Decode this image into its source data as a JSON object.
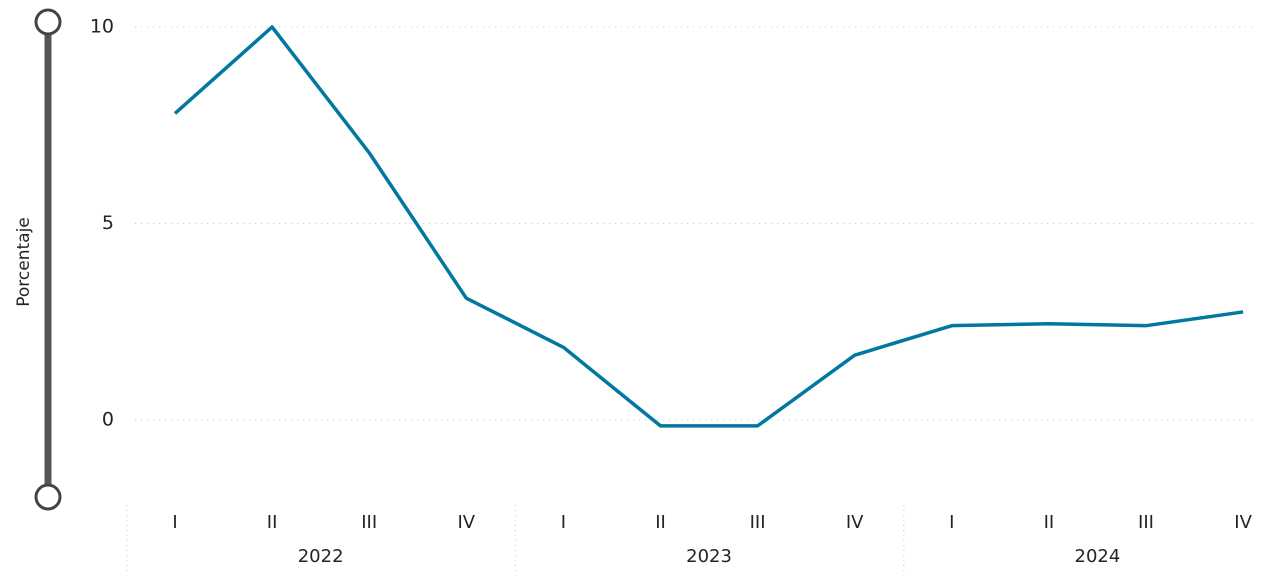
{
  "chart_data": {
    "type": "line",
    "y_axis_label": "Porcentaje",
    "categories": [
      "I",
      "II",
      "III",
      "IV",
      "I",
      "II",
      "III",
      "IV",
      "I",
      "II",
      "III",
      "IV"
    ],
    "groups": [
      "2022",
      "2023",
      "2024"
    ],
    "series": [
      {
        "name": "Porcentaje",
        "color": "#0078a0",
        "values": [
          7.8,
          10.0,
          6.8,
          3.1,
          1.85,
          -0.15,
          -0.15,
          1.65,
          2.4,
          2.45,
          2.4,
          2.75
        ]
      }
    ],
    "ylim": [
      -2,
      10
    ],
    "yticks": [
      0,
      5,
      10
    ],
    "grid": true
  }
}
